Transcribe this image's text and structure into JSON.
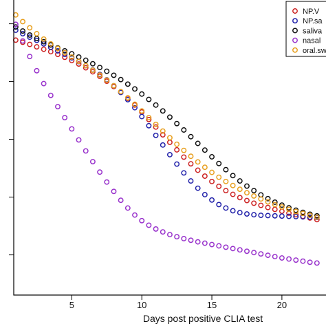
{
  "chart_data": {
    "type": "scatter",
    "xlabel": "Days post positive CLIA test",
    "ylabel": "",
    "title": "",
    "xlim": [
      0,
      23
    ],
    "ylim": [
      0,
      1
    ],
    "x_ticks": [
      5,
      10,
      15,
      20
    ],
    "x_tick_labels": [
      "5",
      "10",
      "15",
      "20"
    ],
    "grid": false,
    "legend_position": "top-right",
    "x": [
      1,
      1.5,
      2,
      2.5,
      3,
      3.5,
      4,
      4.5,
      5,
      5.5,
      6,
      6.5,
      7,
      7.5,
      8,
      8.5,
      9,
      9.5,
      10,
      10.5,
      11,
      11.5,
      12,
      12.5,
      13,
      13.5,
      14,
      14.5,
      15,
      15.5,
      16,
      16.5,
      17,
      17.5,
      18,
      18.5,
      19,
      19.5,
      20,
      20.5,
      21,
      21.5,
      22,
      22.5
    ],
    "series": [
      {
        "name": "NP.V",
        "color": "#cc2222",
        "values": [
          0.876,
          0.868,
          0.86,
          0.851,
          0.842,
          0.833,
          0.823,
          0.812,
          0.8,
          0.787,
          0.773,
          0.758,
          0.741,
          0.723,
          0.703,
          0.682,
          0.659,
          0.634,
          0.608,
          0.58,
          0.552,
          0.523,
          0.495,
          0.467,
          0.44,
          0.415,
          0.391,
          0.369,
          0.349,
          0.331,
          0.315,
          0.301,
          0.289,
          0.278,
          0.268,
          0.26,
          0.252,
          0.245,
          0.238,
          0.231,
          0.225,
          0.219,
          0.213,
          0.207
        ]
      },
      {
        "name": "NP.sa",
        "color": "#2222aa",
        "values": [
          0.913,
          0.9,
          0.887,
          0.875,
          0.862,
          0.849,
          0.836,
          0.823,
          0.81,
          0.796,
          0.781,
          0.765,
          0.748,
          0.728,
          0.706,
          0.681,
          0.654,
          0.624,
          0.591,
          0.557,
          0.521,
          0.485,
          0.449,
          0.414,
          0.381,
          0.351,
          0.324,
          0.3,
          0.28,
          0.263,
          0.25,
          0.24,
          0.233,
          0.228,
          0.225,
          0.223,
          0.222,
          0.221,
          0.22,
          0.219,
          0.218,
          0.217,
          0.216,
          0.215
        ]
      },
      {
        "name": "saliva",
        "color": "#111111",
        "values": [
          0.925,
          0.91,
          0.895,
          0.882,
          0.87,
          0.858,
          0.847,
          0.836,
          0.825,
          0.813,
          0.801,
          0.788,
          0.774,
          0.76,
          0.745,
          0.729,
          0.712,
          0.694,
          0.675,
          0.655,
          0.634,
          0.612,
          0.589,
          0.565,
          0.541,
          0.516,
          0.491,
          0.466,
          0.441,
          0.416,
          0.393,
          0.371,
          0.351,
          0.332,
          0.315,
          0.299,
          0.285,
          0.272,
          0.261,
          0.251,
          0.242,
          0.234,
          0.227,
          0.221
        ]
      },
      {
        "name": "nasal",
        "color": "#9933cc",
        "values": [
          0.935,
          0.873,
          0.815,
          0.762,
          0.714,
          0.67,
          0.628,
          0.587,
          0.545,
          0.504,
          0.463,
          0.423,
          0.384,
          0.347,
          0.312,
          0.279,
          0.25,
          0.224,
          0.203,
          0.186,
          0.172,
          0.161,
          0.151,
          0.143,
          0.136,
          0.13,
          0.124,
          0.119,
          0.114,
          0.109,
          0.104,
          0.099,
          0.094,
          0.089,
          0.084,
          0.079,
          0.074,
          0.069,
          0.064,
          0.06,
          0.056,
          0.052,
          0.048,
          0.045
        ]
      },
      {
        "name": "oral.sw",
        "color": "#e8a020",
        "values": [
          0.97,
          0.945,
          0.922,
          0.9,
          0.88,
          0.862,
          0.845,
          0.829,
          0.813,
          0.797,
          0.781,
          0.764,
          0.746,
          0.727,
          0.706,
          0.684,
          0.661,
          0.637,
          0.612,
          0.587,
          0.562,
          0.537,
          0.512,
          0.488,
          0.465,
          0.443,
          0.422,
          0.402,
          0.383,
          0.365,
          0.349,
          0.334,
          0.32,
          0.307,
          0.295,
          0.284,
          0.273,
          0.263,
          0.254,
          0.245,
          0.237,
          0.23,
          0.223,
          0.216
        ]
      }
    ]
  }
}
